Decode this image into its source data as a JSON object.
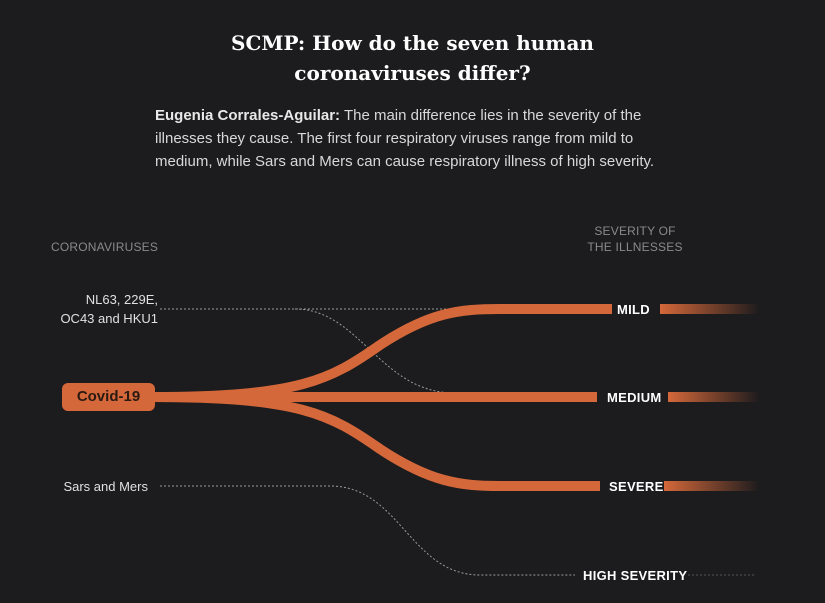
{
  "title": {
    "line1": "SCMP: How do the seven human",
    "line2": "coronaviruses differ?"
  },
  "intro": {
    "author": "Eugenia Corrales-Aguilar:",
    "text": " The main difference lies in the severity of the illnesses they cause. The first four respiratory viruses range from mild to medium, while Sars and Mers can cause respiratory illness of high severity."
  },
  "headers": {
    "left": "CORONAVIRUSES",
    "right_line1": "SEVERITY OF",
    "right_line2": "THE ILLNESSES"
  },
  "viruses": {
    "common_line1": "NL63, 229E,",
    "common_line2": "OC43 and HKU1",
    "covid": "Covid-19",
    "sars": "Sars and Mers"
  },
  "severity": {
    "mild": "MILD",
    "medium": "MEDIUM",
    "severe": "SEVERE",
    "high": "HIGH SEVERITY"
  },
  "colors": {
    "accent": "#d4683a",
    "background": "#1c1b1d"
  }
}
